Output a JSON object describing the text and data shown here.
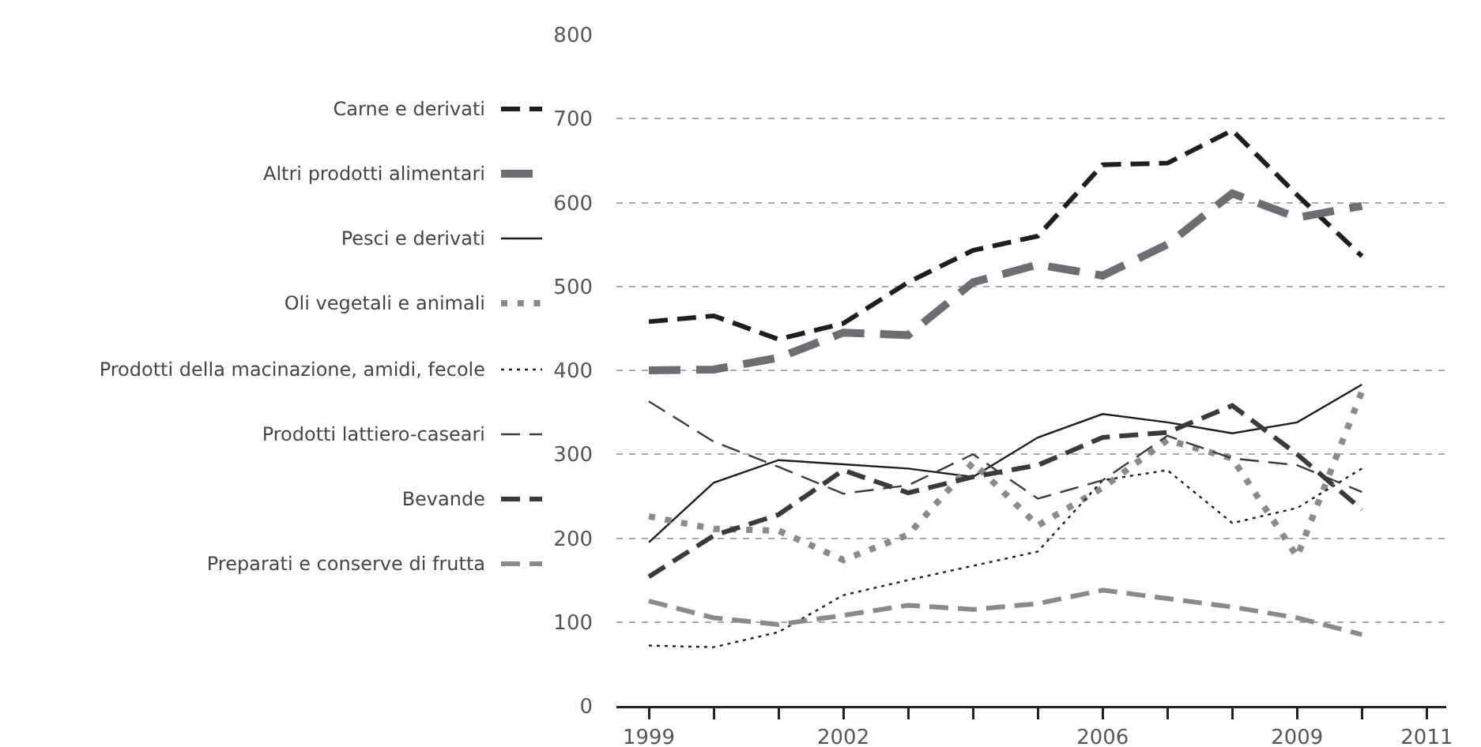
{
  "chart_data": {
    "type": "line",
    "x": [
      1999,
      2000,
      2001,
      2002,
      2003,
      2004,
      2005,
      2006,
      2007,
      2008,
      2009,
      2010
    ],
    "series": [
      {
        "name": "Carne e derivati",
        "color": "#1e1e1e",
        "line_style": "dashed",
        "values": [
          458,
          465,
          437,
          456,
          505,
          543,
          560,
          645,
          647,
          686,
          609,
          536
        ]
      },
      {
        "name": "Altri prodotti alimentari",
        "color": "#6d6e71",
        "line_style": "dashed",
        "values": [
          400,
          401,
          415,
          445,
          442,
          505,
          526,
          513,
          550,
          611,
          582,
          596
        ]
      },
      {
        "name": "Pesci e derivati",
        "color": "#1e1e1e",
        "line_style": "solid",
        "values": [
          195,
          266,
          293,
          288,
          283,
          273,
          320,
          348,
          338,
          325,
          338,
          383
        ]
      },
      {
        "name": "Oli vegetali e animali",
        "color": "#8a8a8c",
        "line_style": "dotted",
        "values": [
          226,
          211,
          209,
          174,
          204,
          290,
          215,
          260,
          317,
          295,
          178,
          375
        ]
      },
      {
        "name": "Prodotti della macinazione, amidi, fecole",
        "color": "#1e1e1e",
        "line_style": "dotted",
        "values": [
          72,
          70,
          88,
          132,
          150,
          167,
          184,
          269,
          281,
          218,
          236,
          283
        ]
      },
      {
        "name": "Prodotti lattiero-caseari",
        "color": "#3c3c3c",
        "line_style": "dashed",
        "values": [
          363,
          315,
          285,
          253,
          263,
          300,
          247,
          269,
          322,
          295,
          287,
          255
        ]
      },
      {
        "name": "Bevande",
        "color": "#3a3a3a",
        "line_style": "dashed",
        "values": [
          154,
          203,
          228,
          281,
          254,
          273,
          287,
          320,
          326,
          358,
          300,
          234
        ]
      },
      {
        "name": "Preparati e conserve di frutta",
        "color": "#8a8a8c",
        "line_style": "dashed",
        "values": [
          125,
          105,
          97,
          108,
          120,
          115,
          122,
          138,
          128,
          118,
          105,
          85
        ]
      }
    ],
    "xlim": [
      1998.5,
      2011.3
    ],
    "xticks": [
      1999,
      {
        "value": 2000,
        "label": null
      },
      {
        "value": 2001,
        "label": null
      },
      2002,
      {
        "value": 2003,
        "label": null
      },
      {
        "value": 2004,
        "label": null
      },
      {
        "value": 2005,
        "label": null
      },
      2006,
      {
        "value": 2007,
        "label": null
      },
      {
        "value": 2008,
        "label": null
      },
      2009,
      {
        "value": 2010,
        "label": null
      },
      2011
    ],
    "ylim": [
      0,
      800
    ],
    "yticks": [
      0,
      100,
      200,
      300,
      400,
      500,
      600,
      700,
      800
    ],
    "grid": "y",
    "legend": "left",
    "marker": "none"
  }
}
